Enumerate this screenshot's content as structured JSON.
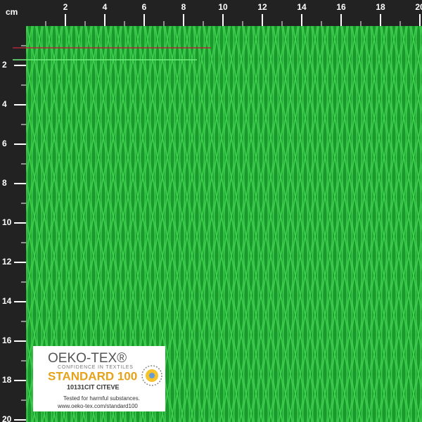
{
  "ruler": {
    "unit": "cm",
    "top_labels": [
      2,
      4,
      6,
      8,
      10,
      12,
      14,
      16,
      18,
      20
    ],
    "left_labels": [
      2,
      4,
      6,
      8,
      10,
      12,
      14,
      16,
      18,
      20
    ]
  },
  "label": {
    "brand": "OEKO-TEX®",
    "tagline": "CONFIDENCE IN TEXTILES",
    "standard": "STANDARD 100",
    "code": "10131CIT CITEVE",
    "note": "Tested for harmful substances.",
    "url": "www.oeko-tex.com/standard100"
  }
}
